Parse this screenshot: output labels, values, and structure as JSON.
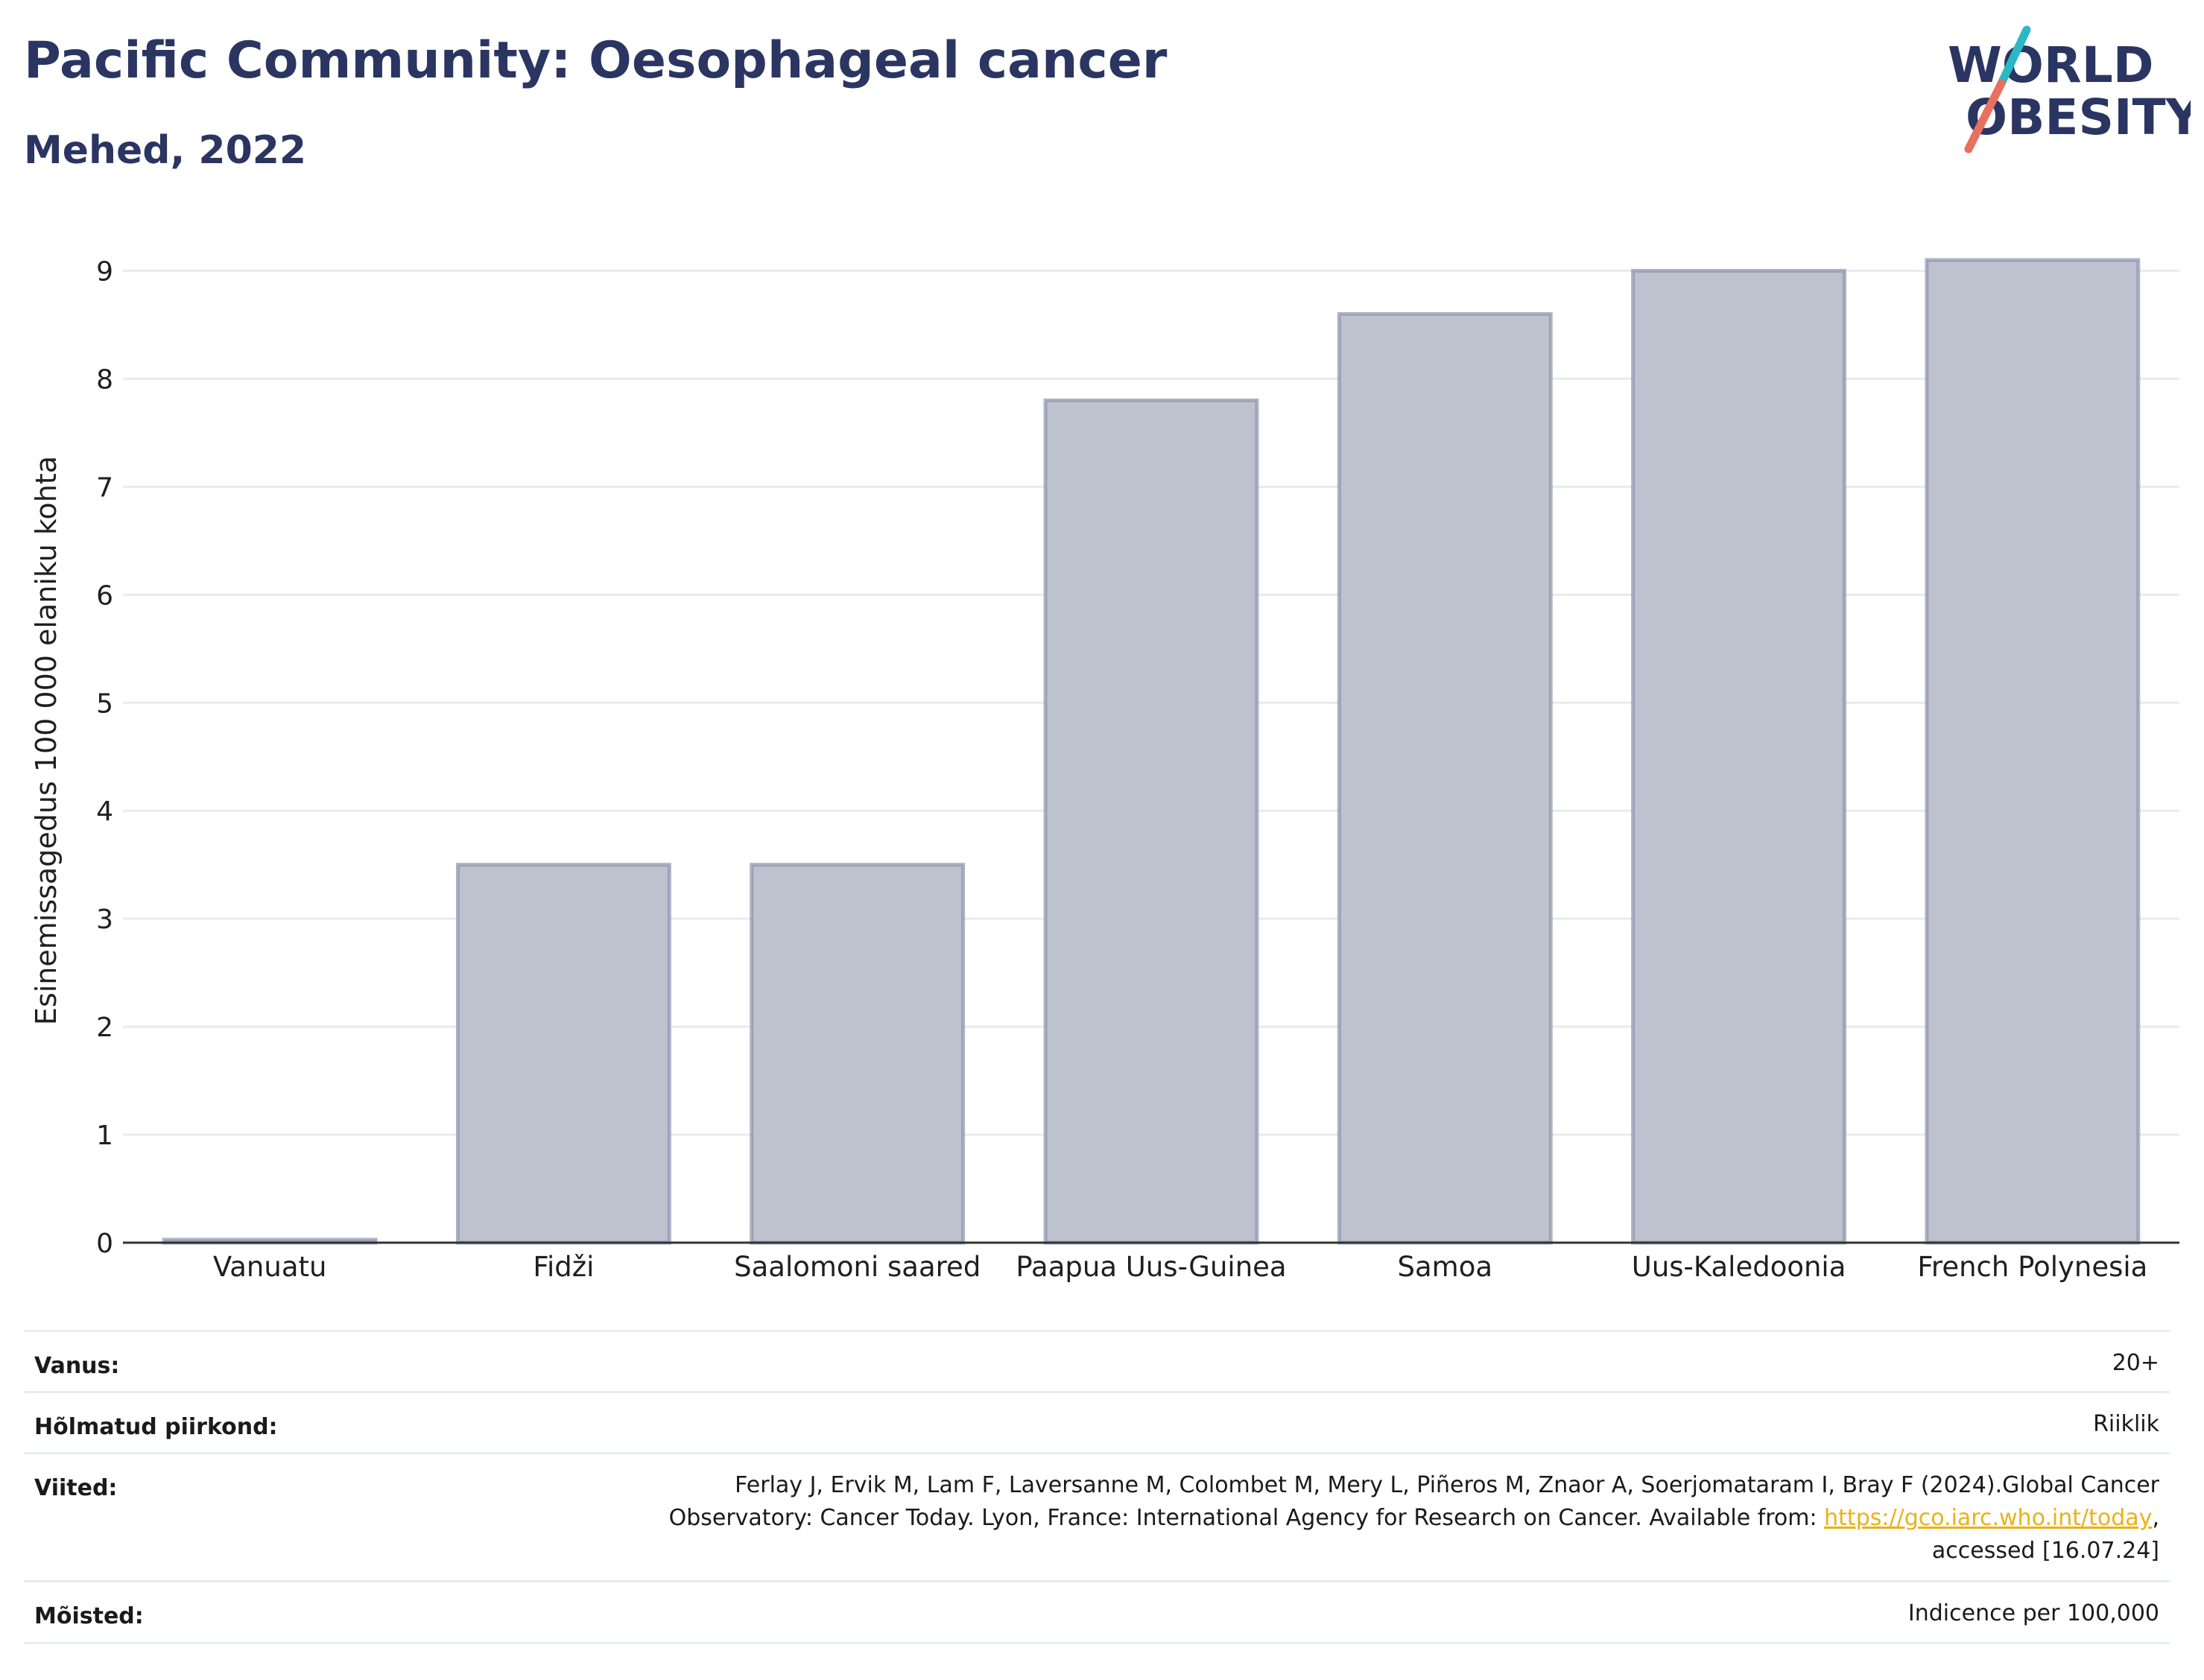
{
  "header": {
    "title": "Pacific Community: Oesophageal cancer",
    "subtitle": "Mehed, 2022",
    "logo_text_line1": "WORLD",
    "logo_text_line2": "OBESITY"
  },
  "chart_data": {
    "type": "bar",
    "categories": [
      "Vanuatu",
      "Fidži",
      "Saalomoni saared",
      "Paapua Uus-Guinea",
      "Samoa",
      "Uus-Kaledoonia",
      "French Polynesia"
    ],
    "values": [
      0.02,
      3.5,
      3.5,
      7.8,
      8.6,
      9.0,
      9.1
    ],
    "ylabel": "Esinemissagedus 100 000 elaniku kohta",
    "xlabel": "",
    "ylim": [
      0,
      9.3
    ],
    "yticks": [
      0,
      1,
      2,
      3,
      4,
      5,
      6,
      7,
      8,
      9
    ],
    "grid": true,
    "bar_fill": "#bec2cf",
    "bar_stroke": "#8c93ad"
  },
  "info": {
    "age_label": "Vanus:",
    "age_value": "20+",
    "region_label": "Hõlmatud piirkond:",
    "region_value": "Riiklik",
    "refs_label": "Viited:",
    "refs_line1": "Ferlay J, Ervik M, Lam F, Laversanne M, Colombet M, Mery L, Piñeros M, Znaor A, Soerjomataram I, Bray F (2024).Global Cancer",
    "refs_line2_pre": "Observatory: Cancer Today. Lyon, France: International Agency for Research on Cancer. Available from: ",
    "refs_link": "https://gco.iarc.who.int/today",
    "refs_line2_post": ",",
    "refs_line3": "accessed [16.07.24]",
    "defs_label": "Mõisted:",
    "defs_value": "Indicence per 100,000"
  },
  "colors": {
    "title": "#2b3562",
    "logo_slash_teal": "#2bb8c4",
    "logo_slash_red": "#e8705e"
  }
}
